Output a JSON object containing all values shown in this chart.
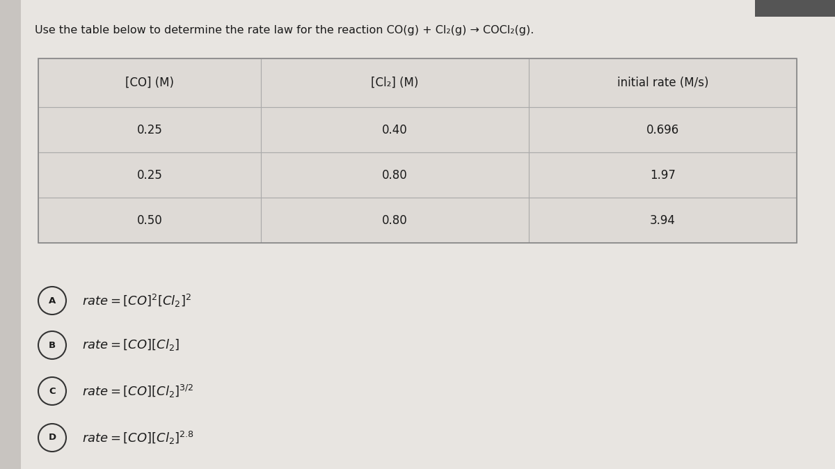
{
  "title": "Use the table below to determine the rate law for the reaction CO(g) + Cl₂(g) → COCl₂(g).",
  "bg_color": "#c8c4c0",
  "page_bg": "#e8e5e1",
  "table_bg": "#dedad6",
  "table_border_color": "#aaaaaa",
  "col_headers": [
    "[CO] (M)",
    "[Cl₂] (M)",
    "initial rate (M/s)"
  ],
  "rows": [
    [
      "0.25",
      "0.40",
      "0.696"
    ],
    [
      "0.25",
      "0.80",
      "1.97"
    ],
    [
      "0.50",
      "0.80",
      "3.94"
    ]
  ],
  "option_labels": [
    "A",
    "B",
    "C",
    "D"
  ],
  "title_fontsize": 11.5,
  "table_fontsize": 12,
  "option_fontsize": 13,
  "text_color": "#1a1a1a",
  "circle_color": "#333333",
  "topbar_color": "#555555"
}
